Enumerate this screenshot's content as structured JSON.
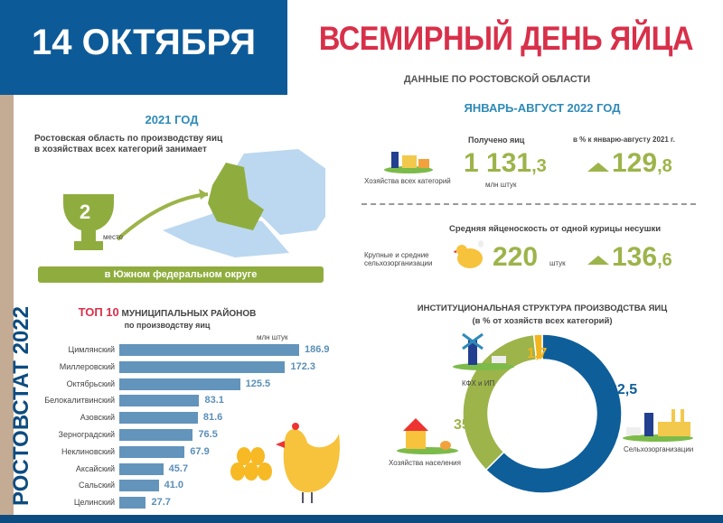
{
  "header": {
    "date": "14 ОКТЯБРЯ",
    "title": "ВСЕМИРНЫЙ ДЕНЬ ЯЙЦА",
    "subtitle": "ДАННЫЕ ПО РОСТОВСКОЙ ОБЛАСТИ"
  },
  "source": "РОСТОВСТАТ 2022",
  "rank_2021": {
    "title": "2021 ГОД",
    "text1": "Ростовская область по производству яиц",
    "text2": "в хозяйствах всех категорий занимает",
    "place": "2",
    "place_label": "место",
    "district": "в Южном федеральном округе"
  },
  "period_2022": {
    "title": "ЯНВАРЬ-АВГУСТ 2022 ГОД",
    "received_label": "Получено яиц",
    "percent_label": "в % к  январю-августу 2021 г.",
    "category_all": "Хозяйства всех категорий",
    "eggs_int": "1 131",
    "eggs_dec": ",3",
    "eggs_unit": "млн штук",
    "eggs_pct_int": "129",
    "eggs_pct_dec": ",8",
    "yield_label": "Средняя яйценоскость от одной курицы несушки",
    "category_large": "Крупные и средние сельхозорганизации",
    "yield_value": "220",
    "yield_unit": "штук",
    "yield_pct_int": "136",
    "yield_pct_dec": ",6"
  },
  "chart_data": [
    {
      "type": "bar",
      "title_accent": "ТОП 10",
      "title": "МУНИЦИПАЛЬНЫХ РАЙОНОВ",
      "subtitle": "по производству яиц",
      "unit": "млн штук",
      "categories": [
        "Цимлянский",
        "Миллеровский",
        "Октябрьский",
        "Белокалитвинский",
        "Азовский",
        "Зерноградский",
        "Неклиновский",
        "Аксайский",
        "Сальский",
        "Целинский"
      ],
      "values": [
        186.9,
        172.3,
        125.5,
        83.1,
        81.6,
        76.5,
        67.9,
        45.7,
        41.0,
        27.7
      ],
      "value_labels": [
        "186.9",
        "172.3",
        "125.5",
        "83.1",
        "81.6",
        "76.5",
        "67.9",
        "45.7",
        "41.0",
        "27.7"
      ]
    },
    {
      "type": "pie",
      "title": "ИНСТИТУЦИОНАЛЬНАЯ СТРУКТУРА ПРОИЗВОДСТВА ЯИЦ",
      "subtitle": "(в % от хозяйств всех категорий)",
      "slices": [
        {
          "name": "Сельхозорганизации",
          "value": 62.5,
          "label": "62,5",
          "color": "#0e5e9a"
        },
        {
          "name": "Хозяйства населения",
          "value": 35.8,
          "label": "35,8",
          "color": "#9cb44a"
        },
        {
          "name": "КФХ и ИП",
          "value": 1.7,
          "label": "1,7",
          "color": "#f2b51c"
        }
      ]
    }
  ]
}
